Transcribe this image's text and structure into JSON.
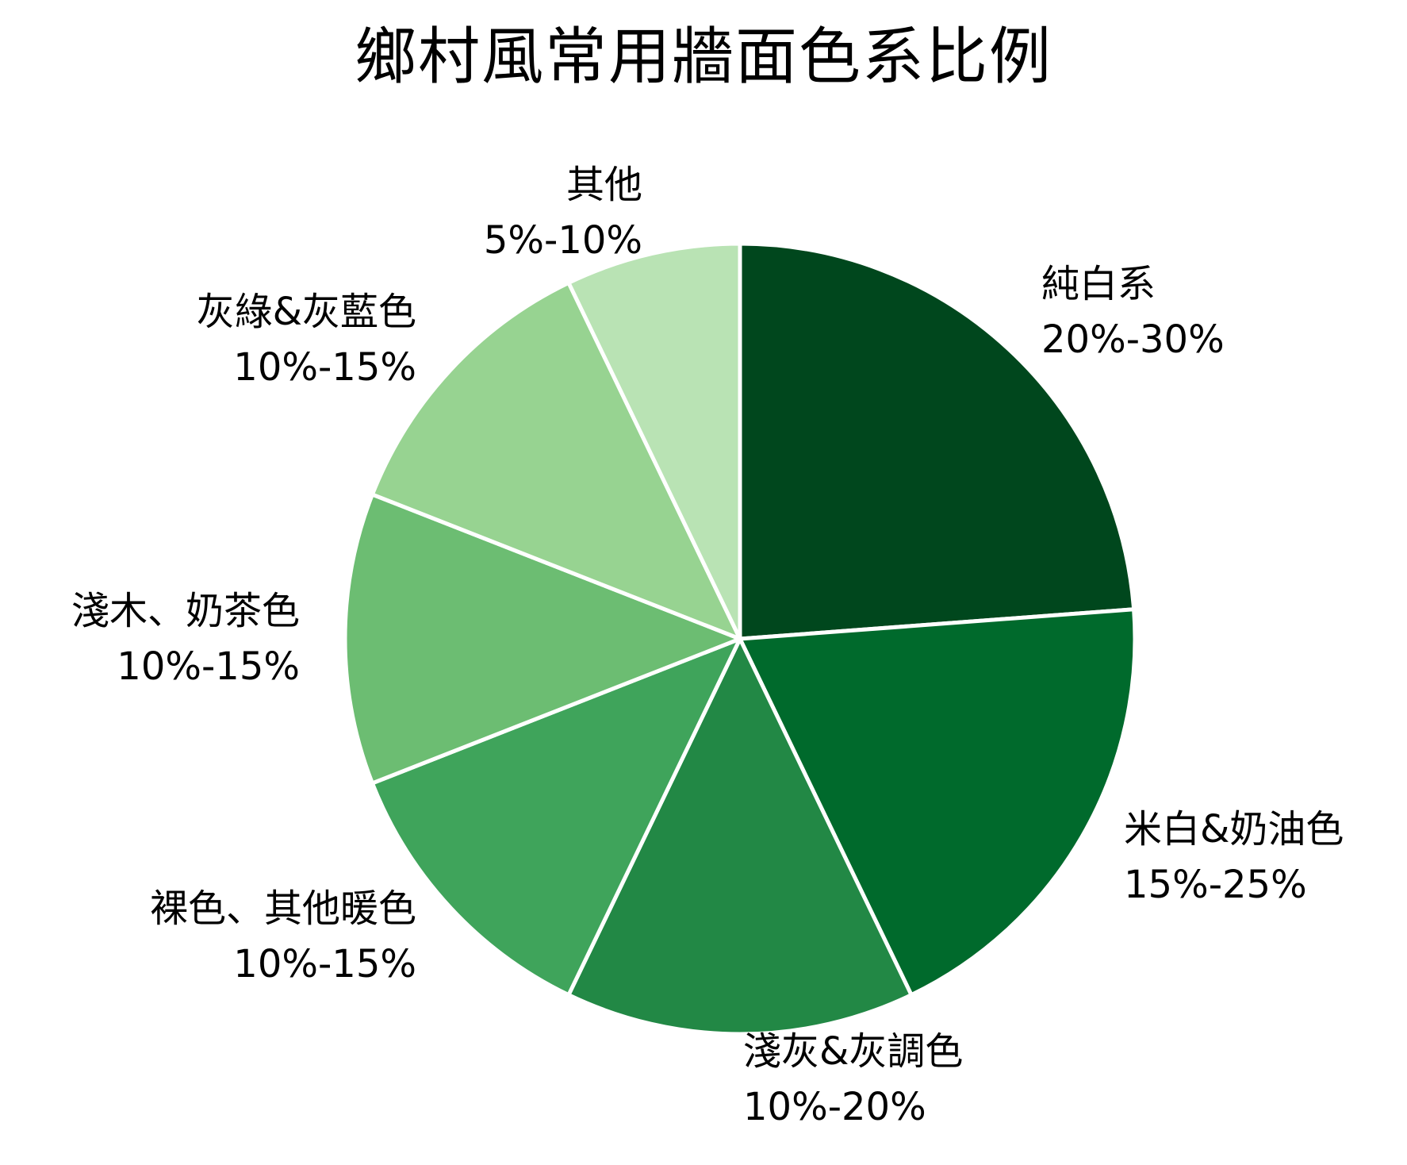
{
  "chart_data": {
    "type": "pie",
    "title": "鄉村風常用牆面色系比例",
    "start_angle_deg": 0,
    "direction": "clockwise",
    "value_basis": "midpoint of stated range",
    "slices": [
      {
        "label": "純白系",
        "range": "20%-30%",
        "value": 25,
        "color": "#00471d"
      },
      {
        "label": "米白&奶油色",
        "range": "15%-25%",
        "value": 20,
        "color": "#006a2c"
      },
      {
        "label": "淺灰&灰調色",
        "range": "10%-20%",
        "value": 15,
        "color": "#228845"
      },
      {
        "label": "裸色、其他暖色",
        "range": "10%-15%",
        "value": 12.5,
        "color": "#3fa45b"
      },
      {
        "label": "淺木、奶茶色",
        "range": "10%-15%",
        "value": 12.5,
        "color": "#6cbd72"
      },
      {
        "label": "灰綠&灰藍色",
        "range": "10%-15%",
        "value": 12.5,
        "color": "#97d391"
      },
      {
        "label": "其他",
        "range": "5%-10%",
        "value": 7.5,
        "color": "#b9e3b4"
      }
    ],
    "legend": "none (direct labels)"
  },
  "labels": [
    {
      "name": "純白系",
      "range": "20%-30%"
    },
    {
      "name": "米白&奶油色",
      "range": "15%-25%"
    },
    {
      "name": "淺灰&灰調色",
      "range": "10%-20%"
    },
    {
      "name": "裸色、其他暖色",
      "range": "10%-15%"
    },
    {
      "name": "淺木、奶茶色",
      "range": "10%-15%"
    },
    {
      "name": "灰綠&灰藍色",
      "range": "10%-15%"
    },
    {
      "name": "其他",
      "range": "5%-10%"
    }
  ]
}
